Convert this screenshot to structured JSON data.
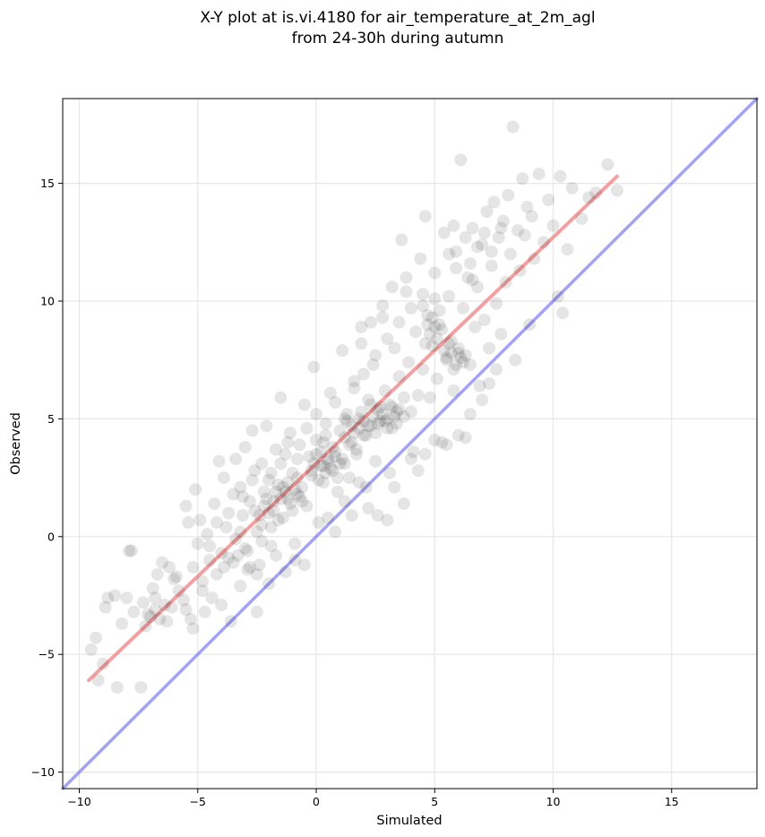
{
  "chart_data": {
    "type": "scatter",
    "title": "X-Y plot at is.vi.4180 for air_temperature_at_2m_agl",
    "subtitle": "from 24-30h during autumn",
    "xlabel": "Simulated",
    "ylabel": "Observed",
    "xlim": [
      -10.7,
      18.6
    ],
    "ylim": [
      -10.7,
      18.6
    ],
    "xticks": [
      -10,
      -5,
      0,
      5,
      10,
      15
    ],
    "yticks": [
      -10,
      -5,
      0,
      5,
      10,
      15
    ],
    "xtick_labels": [
      "−10",
      "−5",
      "0",
      "5",
      "10",
      "15"
    ],
    "ytick_labels": [
      "−10",
      "−5",
      "0",
      "5",
      "10",
      "15"
    ],
    "grid": true,
    "point_color": "#000000",
    "point_opacity": 0.1,
    "fit_line": {
      "color": "#f08080",
      "x": [
        -9.6,
        12.7
      ],
      "y": [
        -6.1,
        15.3
      ]
    },
    "identity_line": {
      "color": "#6666ee",
      "x": [
        -10.7,
        18.6
      ],
      "y": [
        -10.7,
        18.6
      ]
    },
    "points": [
      [
        -9.5,
        -4.8
      ],
      [
        -9.3,
        -4.3
      ],
      [
        -9.2,
        -6.1
      ],
      [
        -9.0,
        -5.4
      ],
      [
        -8.9,
        -3.0
      ],
      [
        -8.8,
        -2.6
      ],
      [
        -8.5,
        -2.5
      ],
      [
        -8.4,
        -6.4
      ],
      [
        -8.2,
        -3.7
      ],
      [
        -8.0,
        -2.6
      ],
      [
        -7.9,
        -0.6
      ],
      [
        -7.8,
        -0.6
      ],
      [
        -7.7,
        -3.2
      ],
      [
        -7.4,
        -6.4
      ],
      [
        -7.3,
        -2.8
      ],
      [
        -7.2,
        -3.8
      ],
      [
        -7.0,
        -3.4
      ],
      [
        -6.9,
        -2.2
      ],
      [
        -6.8,
        -3.1
      ],
      [
        -6.7,
        -1.6
      ],
      [
        -6.6,
        -3.5
      ],
      [
        -6.5,
        -1.1
      ],
      [
        -6.4,
        -2.9
      ],
      [
        -6.2,
        -1.3
      ],
      [
        -6.1,
        -3.0
      ],
      [
        -6.0,
        -1.8
      ],
      [
        -5.8,
        -2.3
      ],
      [
        -5.6,
        -2.7
      ],
      [
        -5.5,
        1.3
      ],
      [
        -5.4,
        0.6
      ],
      [
        -5.3,
        -3.5
      ],
      [
        -5.2,
        -3.9
      ],
      [
        -5.1,
        2.0
      ],
      [
        -5.0,
        -0.3
      ],
      [
        -4.9,
        0.7
      ],
      [
        -4.8,
        -1.9
      ],
      [
        -4.7,
        -3.2
      ],
      [
        -4.6,
        0.1
      ],
      [
        -4.5,
        -1.0
      ],
      [
        -4.4,
        -2.6
      ],
      [
        -4.3,
        1.4
      ],
      [
        -4.2,
        -1.6
      ],
      [
        -4.1,
        3.2
      ],
      [
        -4.0,
        -0.7
      ],
      [
        -3.9,
        2.5
      ],
      [
        -3.8,
        0.4
      ],
      [
        -3.7,
        -0.9
      ],
      [
        -3.6,
        -3.6
      ],
      [
        -3.5,
        1.8
      ],
      [
        -3.4,
        3.3
      ],
      [
        -3.3,
        -0.8
      ],
      [
        -3.2,
        2.1
      ],
      [
        -3.1,
        0.9
      ],
      [
        -3.0,
        3.8
      ],
      [
        -2.9,
        -1.4
      ],
      [
        -2.8,
        1.5
      ],
      [
        -2.7,
        4.5
      ],
      [
        -2.6,
        2.8
      ],
      [
        -2.5,
        0.2
      ],
      [
        -2.4,
        -1.2
      ],
      [
        -2.3,
        3.1
      ],
      [
        -2.2,
        1.9
      ],
      [
        -2.1,
        4.7
      ],
      [
        -2.0,
        2.4
      ],
      [
        -1.9,
        -0.4
      ],
      [
        -1.8,
        1.1
      ],
      [
        -1.7,
        3.7
      ],
      [
        -1.6,
        2.2
      ],
      [
        -1.5,
        5.9
      ],
      [
        -1.4,
        0.8
      ],
      [
        -1.3,
        3.5
      ],
      [
        -1.2,
        1.6
      ],
      [
        -1.1,
        4.4
      ],
      [
        -1.0,
        2.7
      ],
      [
        -0.9,
        -1.0
      ],
      [
        -0.8,
        1.8
      ],
      [
        -0.7,
        3.9
      ],
      [
        -0.6,
        2.1
      ],
      [
        -0.5,
        5.6
      ],
      [
        -0.4,
        1.3
      ],
      [
        -0.3,
        3.4
      ],
      [
        -0.2,
        2.6
      ],
      [
        -0.1,
        7.2
      ],
      [
        0.0,
        4.1
      ],
      [
        0.1,
        0.6
      ],
      [
        0.2,
        3.0
      ],
      [
        0.3,
        2.3
      ],
      [
        0.4,
        4.8
      ],
      [
        0.5,
        3.3
      ],
      [
        0.6,
        6.1
      ],
      [
        0.7,
        2.8
      ],
      [
        0.8,
        3.6
      ],
      [
        0.9,
        1.9
      ],
      [
        1.0,
        4.5
      ],
      [
        1.1,
        7.9
      ],
      [
        1.2,
        3.1
      ],
      [
        1.3,
        5.2
      ],
      [
        1.4,
        2.5
      ],
      [
        1.5,
        4.0
      ],
      [
        1.6,
        6.6
      ],
      [
        1.7,
        3.7
      ],
      [
        1.8,
        5.0
      ],
      [
        1.9,
        8.9
      ],
      [
        2.0,
        4.3
      ],
      [
        2.1,
        2.1
      ],
      [
        2.2,
        5.8
      ],
      [
        2.3,
        4.7
      ],
      [
        2.4,
        7.3
      ],
      [
        2.5,
        3.2
      ],
      [
        2.6,
        5.4
      ],
      [
        2.7,
        4.9
      ],
      [
        2.8,
        9.3
      ],
      [
        2.9,
        6.2
      ],
      [
        3.0,
        4.6
      ],
      [
        3.1,
        2.7
      ],
      [
        3.2,
        5.5
      ],
      [
        3.3,
        8.0
      ],
      [
        3.4,
        4.8
      ],
      [
        3.5,
        6.8
      ],
      [
        3.6,
        12.6
      ],
      [
        3.7,
        5.1
      ],
      [
        3.8,
        10.4
      ],
      [
        3.9,
        7.4
      ],
      [
        4.0,
        5.3
      ],
      [
        4.1,
        3.6
      ],
      [
        4.2,
        8.7
      ],
      [
        4.3,
        6.0
      ],
      [
        4.4,
        11.8
      ],
      [
        4.5,
        7.1
      ],
      [
        4.6,
        13.6
      ],
      [
        4.7,
        9.4
      ],
      [
        4.8,
        5.9
      ],
      [
        4.9,
        8.1
      ],
      [
        5.0,
        11.2
      ],
      [
        5.1,
        6.7
      ],
      [
        5.2,
        9.0
      ],
      [
        5.3,
        4.0
      ],
      [
        5.4,
        12.9
      ],
      [
        5.5,
        7.6
      ],
      [
        5.6,
        10.2
      ],
      [
        5.7,
        8.3
      ],
      [
        5.8,
        6.2
      ],
      [
        5.9,
        12.1
      ],
      [
        6.0,
        7.8
      ],
      [
        6.1,
        16.0
      ],
      [
        6.2,
        9.7
      ],
      [
        6.3,
        4.2
      ],
      [
        6.4,
        11.0
      ],
      [
        6.5,
        7.3
      ],
      [
        6.6,
        13.1
      ],
      [
        6.7,
        8.9
      ],
      [
        6.8,
        10.6
      ],
      [
        6.9,
        6.4
      ],
      [
        7.0,
        12.4
      ],
      [
        7.1,
        9.2
      ],
      [
        7.2,
        13.8
      ],
      [
        7.3,
        8.0
      ],
      [
        7.4,
        11.5
      ],
      [
        7.5,
        14.2
      ],
      [
        7.6,
        9.9
      ],
      [
        7.7,
        12.7
      ],
      [
        7.8,
        8.6
      ],
      [
        7.9,
        13.4
      ],
      [
        8.0,
        10.8
      ],
      [
        8.1,
        14.5
      ],
      [
        8.2,
        12.0
      ],
      [
        8.3,
        17.4
      ],
      [
        8.4,
        7.5
      ],
      [
        8.5,
        13.0
      ],
      [
        8.6,
        11.3
      ],
      [
        8.7,
        15.2
      ],
      [
        8.8,
        12.8
      ],
      [
        8.9,
        14.0
      ],
      [
        9.0,
        9.0
      ],
      [
        9.1,
        13.6
      ],
      [
        9.2,
        11.8
      ],
      [
        9.4,
        15.4
      ],
      [
        9.6,
        12.5
      ],
      [
        9.8,
        14.3
      ],
      [
        10.0,
        13.2
      ],
      [
        10.2,
        10.2
      ],
      [
        10.3,
        15.3
      ],
      [
        10.4,
        9.5
      ],
      [
        10.6,
        12.2
      ],
      [
        10.8,
        14.8
      ],
      [
        11.2,
        13.5
      ],
      [
        11.5,
        14.4
      ],
      [
        11.8,
        14.6
      ],
      [
        12.3,
        15.8
      ],
      [
        12.7,
        14.7
      ],
      [
        0.3,
        3.0
      ],
      [
        0.5,
        3.2
      ],
      [
        0.6,
        2.9
      ],
      [
        0.8,
        3.4
      ],
      [
        1.0,
        3.1
      ],
      [
        0.2,
        3.6
      ],
      [
        0.4,
        2.7
      ],
      [
        0.7,
        3.8
      ],
      [
        0.9,
        2.5
      ],
      [
        1.1,
        3.3
      ],
      [
        -0.2,
        2.8
      ],
      [
        -0.1,
        3.1
      ],
      [
        0.1,
        2.4
      ],
      [
        0.0,
        3.5
      ],
      [
        0.3,
        4.0
      ],
      [
        1.2,
        4.2
      ],
      [
        1.4,
        3.9
      ],
      [
        1.6,
        4.4
      ],
      [
        1.8,
        4.6
      ],
      [
        2.0,
        4.9
      ],
      [
        2.2,
        4.7
      ],
      [
        2.4,
        5.1
      ],
      [
        2.6,
        4.8
      ],
      [
        2.8,
        5.2
      ],
      [
        3.0,
        5.0
      ],
      [
        3.2,
        4.6
      ],
      [
        3.4,
        5.3
      ],
      [
        2.5,
        4.4
      ],
      [
        2.7,
        5.5
      ],
      [
        2.9,
        4.9
      ],
      [
        3.1,
        5.6
      ],
      [
        3.3,
        5.1
      ],
      [
        3.5,
        5.4
      ],
      [
        3.7,
        5.9
      ],
      [
        1.9,
        5.3
      ],
      [
        2.1,
        4.3
      ],
      [
        2.3,
        5.6
      ],
      [
        1.5,
        4.7
      ],
      [
        1.7,
        3.5
      ],
      [
        1.3,
        4.9
      ],
      [
        5.5,
        7.5
      ],
      [
        5.7,
        7.8
      ],
      [
        5.9,
        7.3
      ],
      [
        6.1,
        7.6
      ],
      [
        5.6,
        8.2
      ],
      [
        5.8,
        7.1
      ],
      [
        6.0,
        8.0
      ],
      [
        6.2,
        7.4
      ],
      [
        5.4,
        7.9
      ],
      [
        6.3,
        7.7
      ],
      [
        4.8,
        8.6
      ],
      [
        5.0,
        8.9
      ],
      [
        4.9,
        9.3
      ],
      [
        5.1,
        8.4
      ],
      [
        4.7,
        9.0
      ],
      [
        5.2,
        9.6
      ],
      [
        4.6,
        8.2
      ],
      [
        5.3,
        8.8
      ],
      [
        4.5,
        9.8
      ],
      [
        5.0,
        10.1
      ],
      [
        -1.5,
        1.6
      ],
      [
        -1.3,
        1.9
      ],
      [
        -1.1,
        1.4
      ],
      [
        -0.9,
        2.0
      ],
      [
        -0.7,
        1.7
      ],
      [
        -1.2,
        2.3
      ],
      [
        -1.0,
        1.1
      ],
      [
        -0.8,
        2.5
      ],
      [
        -0.6,
        1.5
      ],
      [
        -1.4,
        2.1
      ],
      [
        -2.0,
        1.0
      ],
      [
        -1.8,
        1.5
      ],
      [
        -1.6,
        0.7
      ],
      [
        -2.2,
        1.3
      ],
      [
        -1.9,
        0.4
      ],
      [
        -1.7,
        1.9
      ],
      [
        -2.4,
        0.9
      ],
      [
        -2.1,
        1.6
      ],
      [
        -2.6,
        1.1
      ],
      [
        -2.3,
        0.5
      ],
      [
        -3.5,
        -1.1
      ],
      [
        -3.0,
        -0.5
      ],
      [
        -2.8,
        -1.3
      ],
      [
        -3.2,
        0.2
      ],
      [
        -2.5,
        -1.6
      ],
      [
        -2.0,
        -2.0
      ],
      [
        -1.7,
        -0.8
      ],
      [
        -1.3,
        -1.5
      ],
      [
        -0.9,
        -0.3
      ],
      [
        -0.5,
        -1.2
      ],
      [
        -4.5,
        -0.4
      ],
      [
        -4.2,
        0.6
      ],
      [
        -3.9,
        -1.3
      ],
      [
        -3.7,
        1.0
      ],
      [
        -3.4,
        -0.1
      ],
      [
        -3.1,
        1.7
      ],
      [
        -2.9,
        -0.6
      ],
      [
        -2.7,
        2.4
      ],
      [
        -2.3,
        -0.2
      ],
      [
        -1.9,
        2.7
      ],
      [
        0.5,
        0.8
      ],
      [
        0.8,
        0.2
      ],
      [
        1.2,
        1.5
      ],
      [
        1.5,
        0.9
      ],
      [
        1.8,
        2.3
      ],
      [
        2.2,
        1.2
      ],
      [
        2.6,
        0.9
      ],
      [
        3.0,
        0.7
      ],
      [
        3.3,
        2.1
      ],
      [
        3.7,
        1.4
      ],
      [
        4.0,
        3.3
      ],
      [
        4.3,
        2.8
      ],
      [
        4.6,
        3.5
      ],
      [
        5.0,
        4.1
      ],
      [
        5.5,
        3.9
      ],
      [
        6.0,
        4.3
      ],
      [
        6.5,
        5.2
      ],
      [
        7.0,
        5.8
      ],
      [
        7.3,
        6.5
      ],
      [
        7.6,
        7.1
      ],
      [
        -2.5,
        -3.2
      ],
      [
        -3.2,
        -2.1
      ],
      [
        -4.0,
        -2.9
      ],
      [
        -4.8,
        -2.3
      ],
      [
        -5.5,
        -3.1
      ],
      [
        -6.3,
        -3.6
      ],
      [
        -6.8,
        -2.6
      ],
      [
        -7.1,
        -3.3
      ],
      [
        -5.9,
        -1.7
      ],
      [
        -5.2,
        -1.3
      ],
      [
        -1.5,
        3.1
      ],
      [
        -1.2,
        4.0
      ],
      [
        -0.8,
        3.3
      ],
      [
        -0.4,
        4.6
      ],
      [
        0.0,
        5.2
      ],
      [
        0.4,
        4.3
      ],
      [
        0.8,
        5.7
      ],
      [
        1.2,
        5.0
      ],
      [
        1.6,
        6.3
      ],
      [
        2.0,
        6.9
      ],
      [
        2.5,
        7.7
      ],
      [
        3.0,
        8.4
      ],
      [
        3.5,
        9.1
      ],
      [
        4.0,
        9.7
      ],
      [
        4.5,
        10.3
      ],
      [
        3.8,
        11.0
      ],
      [
        3.2,
        10.6
      ],
      [
        2.8,
        9.8
      ],
      [
        2.3,
        9.1
      ],
      [
        1.9,
        8.2
      ],
      [
        6.5,
        11.6
      ],
      [
        6.8,
        12.3
      ],
      [
        7.1,
        12.9
      ],
      [
        6.3,
        12.7
      ],
      [
        5.9,
        11.4
      ],
      [
        5.6,
        12.0
      ],
      [
        5.8,
        13.2
      ],
      [
        6.6,
        10.9
      ],
      [
        7.4,
        12.1
      ],
      [
        7.8,
        13.1
      ]
    ]
  }
}
